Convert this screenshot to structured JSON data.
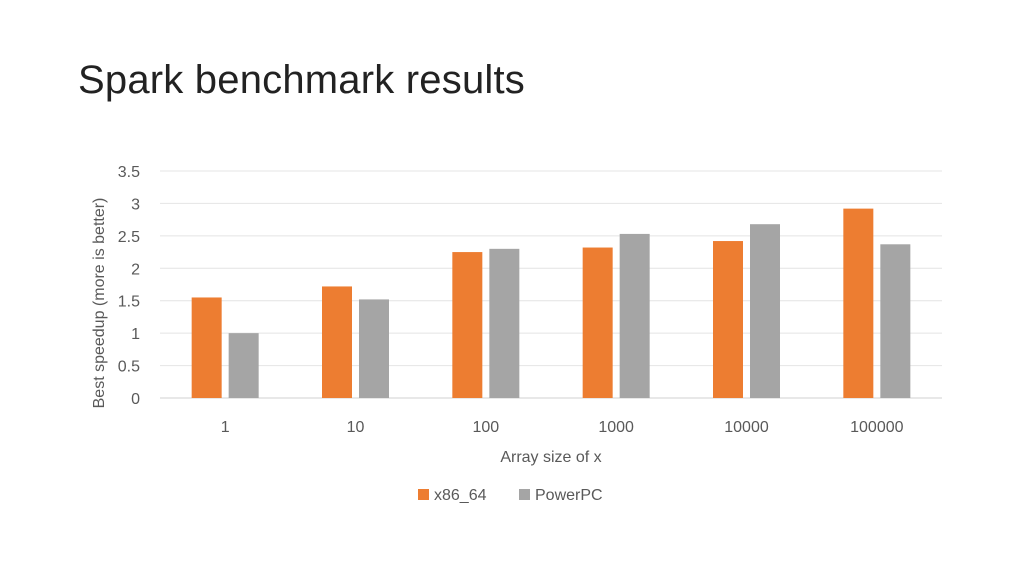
{
  "slide": {
    "title": "Spark benchmark results"
  },
  "chart_data": {
    "type": "bar",
    "categories": [
      "1",
      "10",
      "100",
      "1000",
      "10000",
      "100000"
    ],
    "series": [
      {
        "name": "x86_64",
        "color": "#ED7D31",
        "values": [
          1.55,
          1.72,
          2.25,
          2.32,
          2.42,
          2.92
        ]
      },
      {
        "name": "PowerPC",
        "color": "#A5A5A5",
        "values": [
          1.0,
          1.52,
          2.3,
          2.53,
          2.68,
          2.37
        ]
      }
    ],
    "xlabel": "Array size of x",
    "ylabel": "Best speedup (more is better)",
    "ylim": [
      0,
      3.5
    ],
    "yticks": [
      "0",
      "0.5",
      "1",
      "1.5",
      "2",
      "2.5",
      "3",
      "3.5"
    ],
    "grid": true,
    "legend_position": "bottom"
  }
}
